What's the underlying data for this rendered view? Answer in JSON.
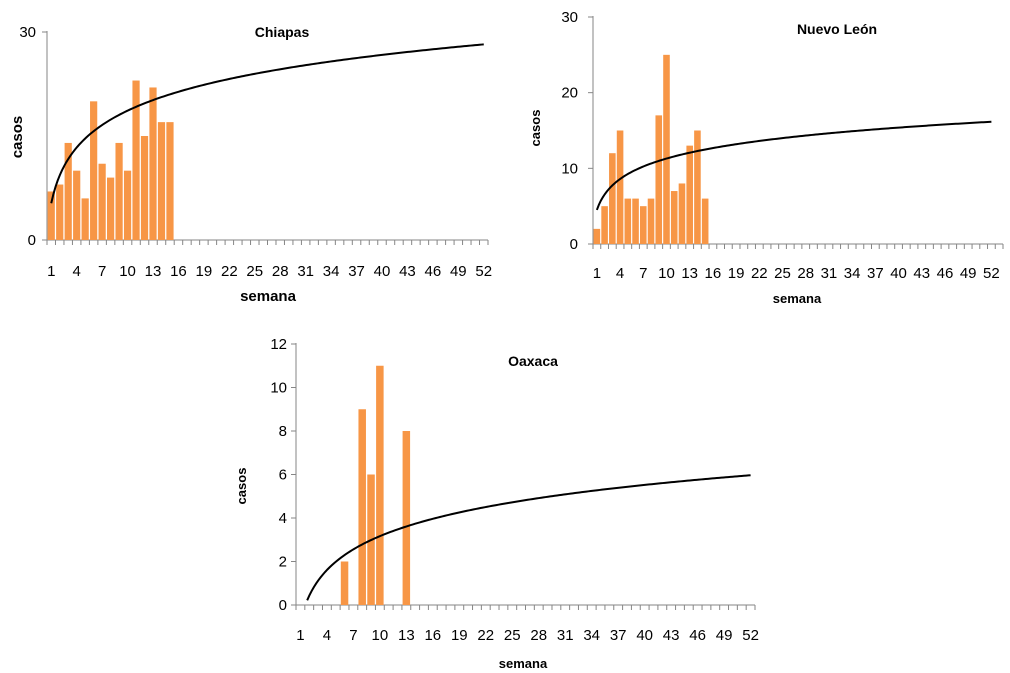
{
  "chart_data": [
    {
      "type": "bar",
      "title": "Chiapas",
      "xlabel": "semana",
      "ylabel": "casos",
      "ylim": [
        0,
        30
      ],
      "yticks": [
        "0",
        "30"
      ],
      "xlim": [
        1,
        52
      ],
      "xticks": [
        "1",
        "4",
        "7",
        "10",
        "13",
        "16",
        "19",
        "22",
        "25",
        "28",
        "31",
        "34",
        "37",
        "40",
        "43",
        "46",
        "49",
        "52"
      ],
      "x": [
        1,
        2,
        3,
        4,
        5,
        6,
        7,
        8,
        9,
        10,
        11,
        12,
        13,
        14,
        15
      ],
      "values": [
        7,
        8,
        14,
        10,
        6,
        20,
        11,
        9,
        14,
        10,
        23,
        15,
        22,
        17,
        17
      ],
      "bar_color": "#F79646",
      "trend": {
        "type": "logarithmic",
        "intercept": 5.3,
        "slope": 5.8,
        "color": "#000000"
      }
    },
    {
      "type": "bar",
      "title": "Nuevo León",
      "xlabel": "semana",
      "ylabel": "casos",
      "ylim": [
        0,
        30
      ],
      "yticks": [
        "0",
        "10",
        "20",
        "30"
      ],
      "xlim": [
        1,
        52
      ],
      "xticks": [
        "1",
        "4",
        "7",
        "10",
        "13",
        "16",
        "19",
        "22",
        "25",
        "28",
        "31",
        "34",
        "37",
        "40",
        "43",
        "46",
        "49",
        "52"
      ],
      "x": [
        1,
        2,
        3,
        4,
        5,
        6,
        7,
        8,
        9,
        10,
        11,
        12,
        13,
        14,
        15
      ],
      "values": [
        2,
        5,
        12,
        15,
        6,
        6,
        5,
        6,
        17,
        25,
        7,
        8,
        13,
        15,
        6
      ],
      "bar_color": "#F79646",
      "trend": {
        "type": "logarithmic",
        "intercept": 4.5,
        "slope": 2.95,
        "color": "#000000"
      }
    },
    {
      "type": "bar",
      "title": "Oaxaca",
      "xlabel": "semana",
      "ylabel": "casos",
      "ylim": [
        0,
        12
      ],
      "yticks": [
        "0",
        "2",
        "4",
        "6",
        "8",
        "10",
        "12"
      ],
      "xlim": [
        1,
        52
      ],
      "xticks": [
        "1",
        "4",
        "7",
        "10",
        "13",
        "16",
        "19",
        "22",
        "25",
        "28",
        "31",
        "34",
        "37",
        "40",
        "43",
        "46",
        "49",
        "52"
      ],
      "x": [
        6,
        8,
        9,
        10,
        13
      ],
      "values": [
        2,
        9,
        6,
        11,
        8
      ],
      "bar_color": "#F79646",
      "trend": {
        "type": "logarithmic",
        "intercept": -0.75,
        "slope": 1.7,
        "color": "#000000"
      }
    }
  ]
}
